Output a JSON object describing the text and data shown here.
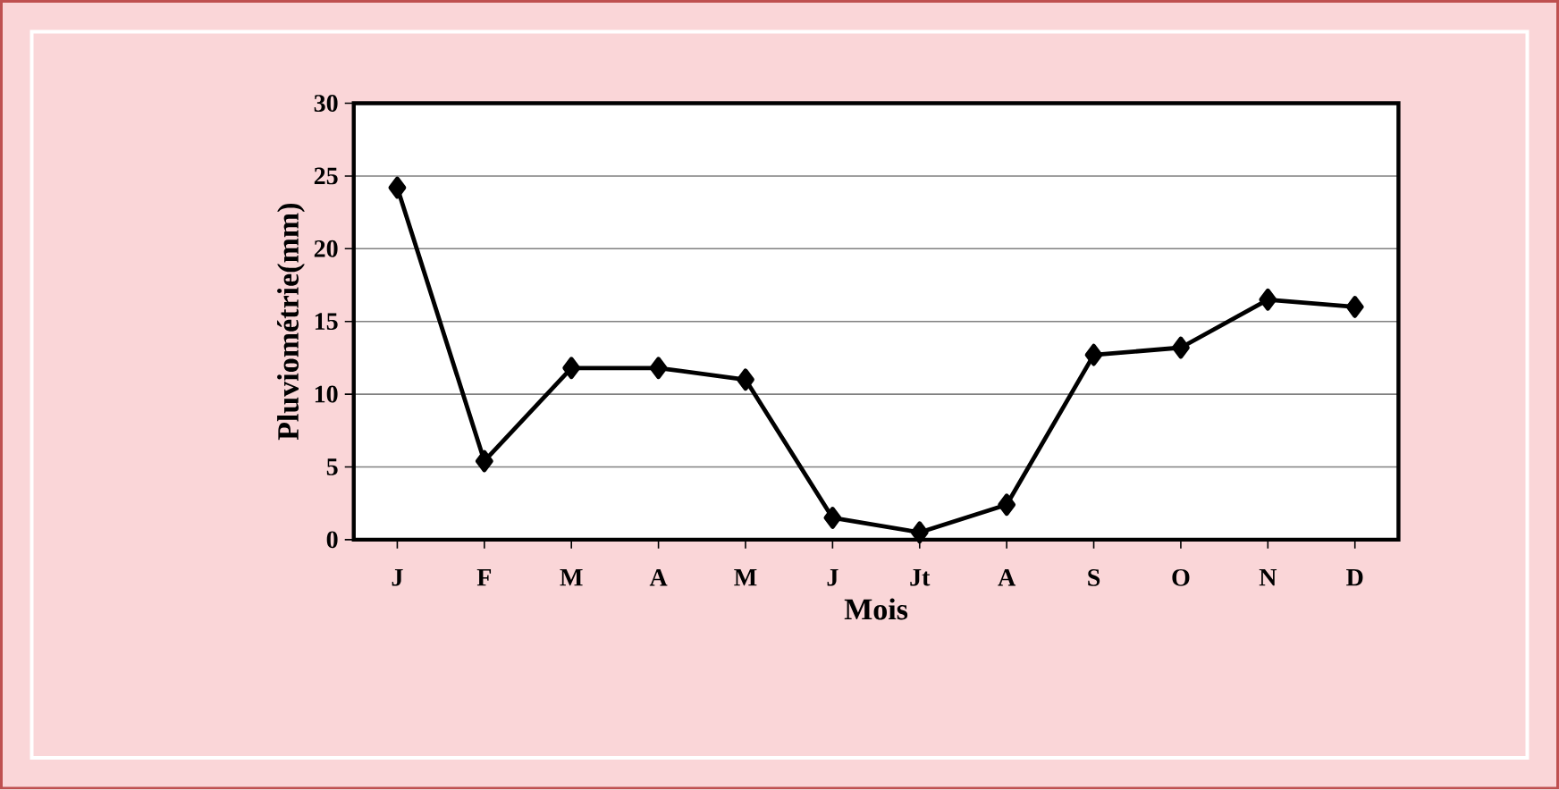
{
  "chart_data": {
    "type": "line",
    "xlabel": "Mois",
    "ylabel": "Pluviométrie(mm)",
    "categories": [
      "J",
      "F",
      "M",
      "A",
      "M",
      "J",
      "Jt",
      "A",
      "S",
      "O",
      "N",
      "D"
    ],
    "series": [
      {
        "color": "#000000",
        "values": [
          24.2,
          5.4,
          11.8,
          11.8,
          11.0,
          1.5,
          0.5,
          2.4,
          12.7,
          13.2,
          16.5,
          16.0
        ]
      }
    ],
    "ylim": [
      0,
      30
    ],
    "yticks": [
      0,
      5,
      10,
      15,
      20,
      25,
      30
    ],
    "grid": "y",
    "marker": "diamond",
    "line_style": "solid"
  }
}
